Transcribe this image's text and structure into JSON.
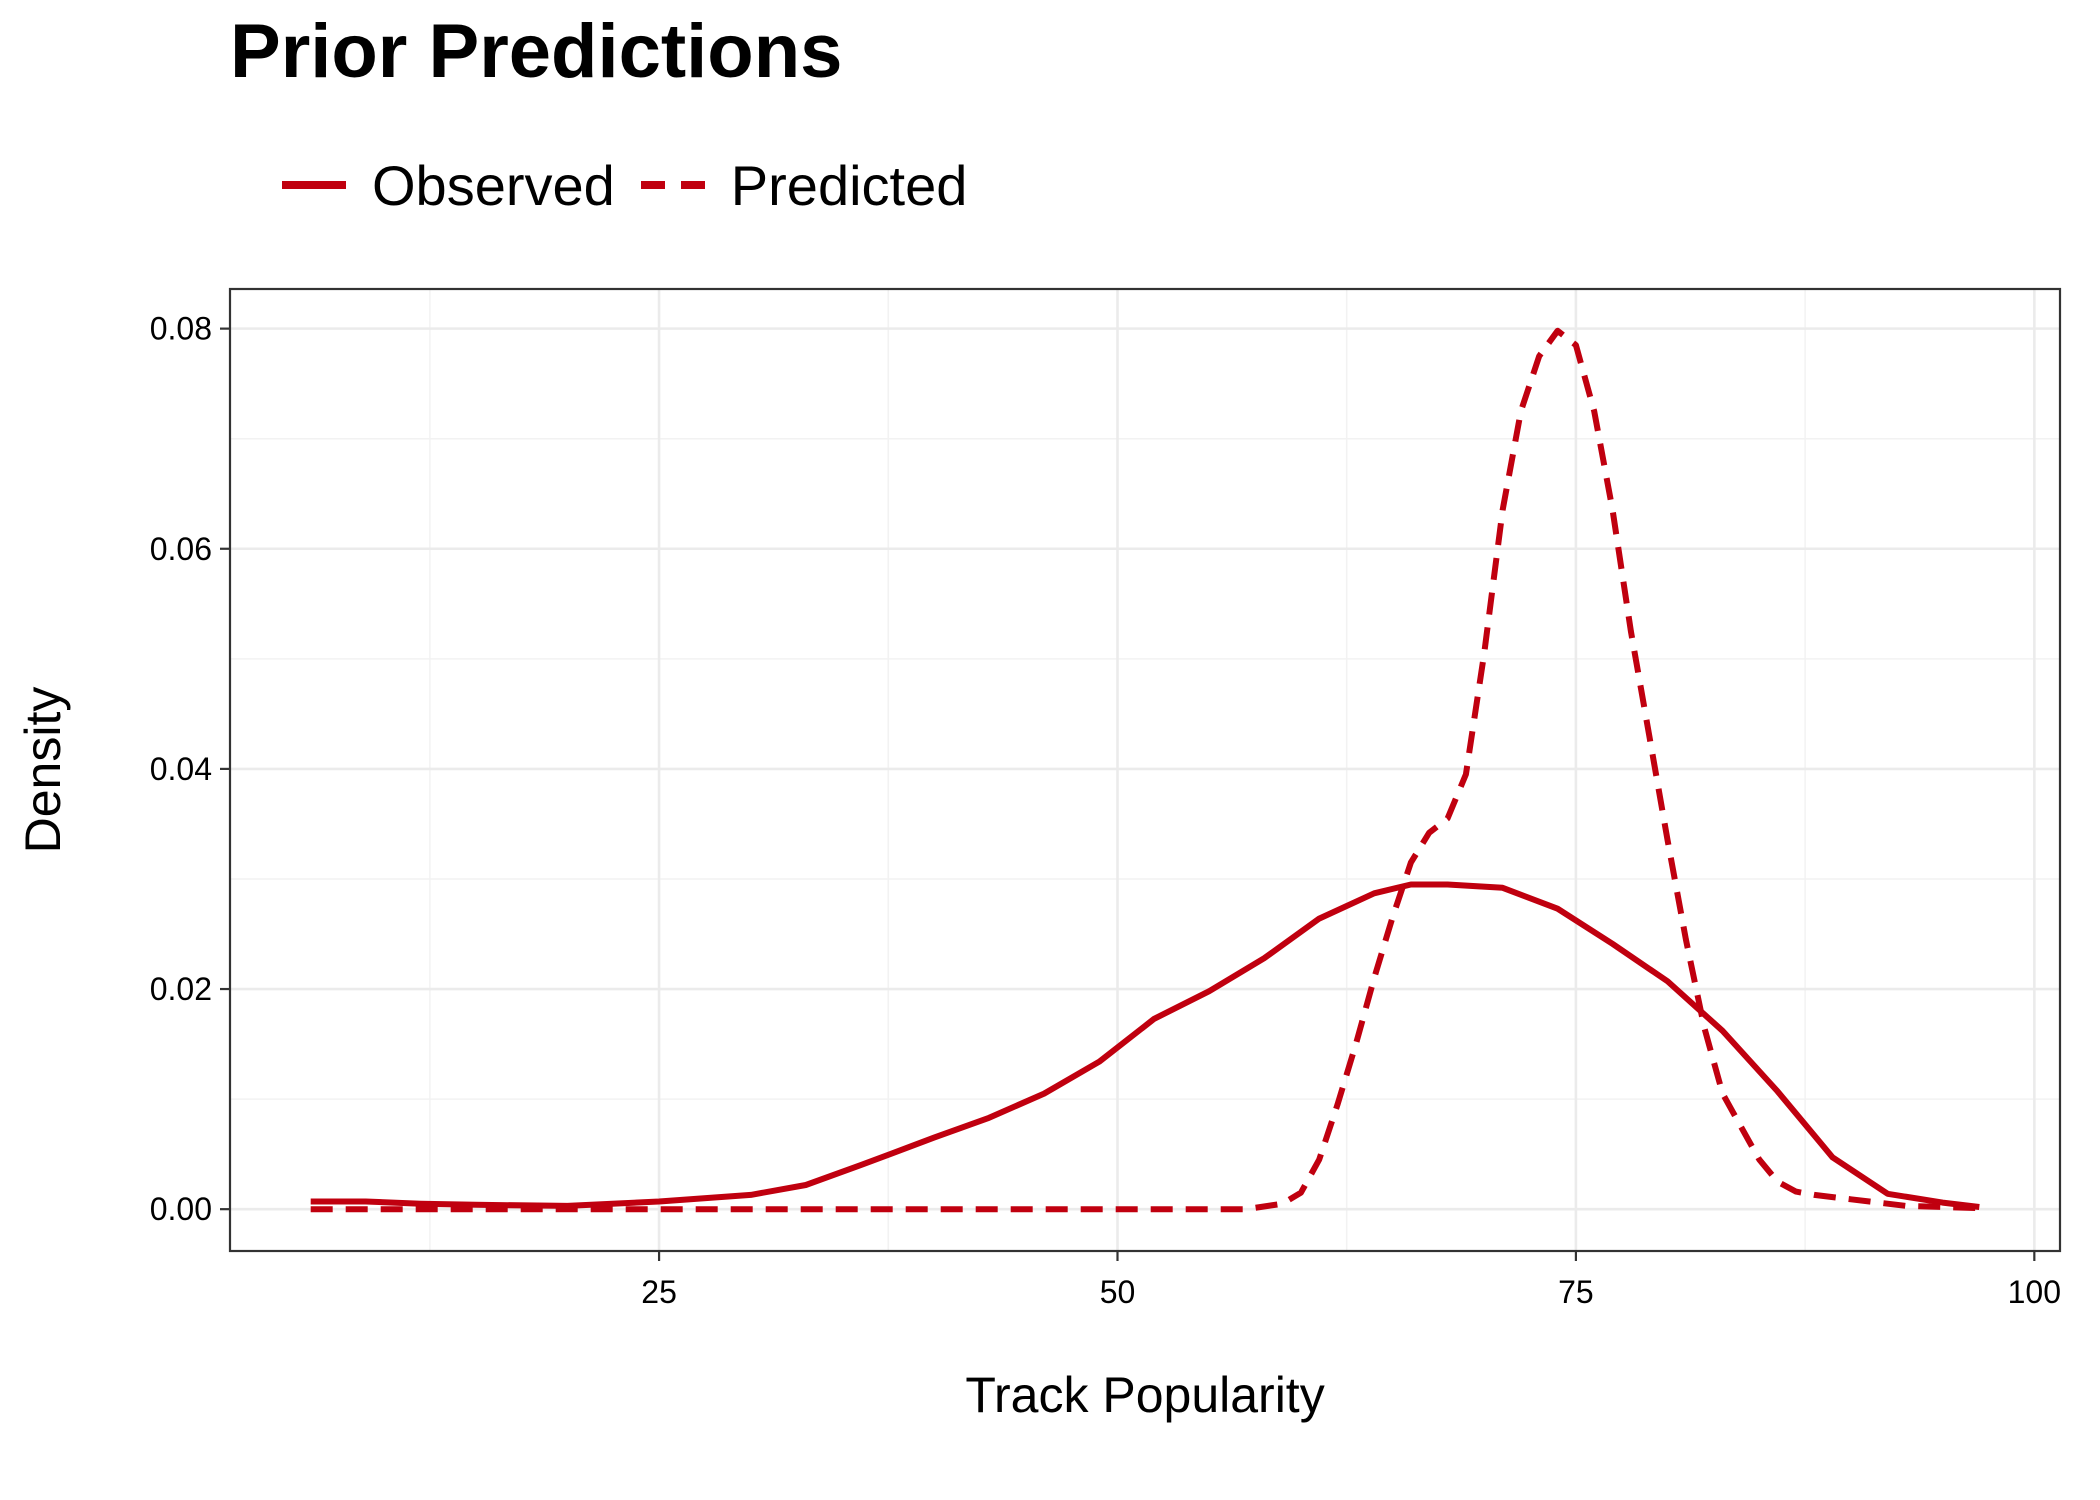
{
  "chart_data": {
    "type": "line",
    "title": "Prior Predictions",
    "xlabel": "Track Popularity",
    "ylabel": "Density",
    "xlim": [
      1.6,
      101.4
    ],
    "ylim": [
      -0.0038,
      0.0836
    ],
    "x_ticks": [
      25,
      50,
      75,
      100
    ],
    "x_tick_labels": [
      "25",
      "50",
      "75",
      "100"
    ],
    "y_ticks": [
      0,
      0.02,
      0.04,
      0.06,
      0.08
    ],
    "y_tick_labels": [
      "0.00",
      "0.02",
      "0.04",
      "0.06",
      "0.08"
    ],
    "grid": true,
    "legend_position": "top-left",
    "color": "#c0000f",
    "series": [
      {
        "name": "Observed",
        "style": "solid",
        "x": [
          6,
          9,
          12,
          15,
          20,
          25,
          30,
          33,
          36,
          40,
          43,
          46,
          49,
          52,
          55,
          58,
          61,
          64,
          66,
          68,
          71,
          74,
          77,
          80,
          83,
          86,
          89,
          92,
          95,
          97
        ],
        "y": [
          0.0007,
          0.0007,
          0.0005,
          0.0004,
          0.0003,
          0.0007,
          0.0013,
          0.0022,
          0.004,
          0.0065,
          0.0083,
          0.0105,
          0.0134,
          0.0173,
          0.0198,
          0.0228,
          0.0264,
          0.0287,
          0.0295,
          0.0295,
          0.0292,
          0.0273,
          0.0241,
          0.0207,
          0.0162,
          0.0107,
          0.0047,
          0.0014,
          0.0006,
          0.0002
        ]
      },
      {
        "name": "Predicted",
        "style": "dashed",
        "x": [
          6,
          20,
          40,
          57,
          59,
          60,
          61,
          62,
          63,
          64,
          65,
          66,
          67,
          68,
          69,
          70,
          71,
          72,
          73,
          74,
          75,
          76,
          77,
          78,
          79,
          80,
          81,
          82,
          83,
          84,
          85,
          86,
          87,
          88,
          90,
          93,
          97
        ],
        "y": [
          0.0,
          0.0,
          0.0,
          0.0,
          0.0005,
          0.0015,
          0.0045,
          0.0095,
          0.015,
          0.021,
          0.0265,
          0.0315,
          0.0342,
          0.0355,
          0.0395,
          0.0505,
          0.0635,
          0.0725,
          0.0775,
          0.0798,
          0.0785,
          0.0725,
          0.0635,
          0.0525,
          0.043,
          0.0335,
          0.0245,
          0.0165,
          0.0105,
          0.0075,
          0.0045,
          0.0025,
          0.0016,
          0.0013,
          0.0009,
          0.0003,
          0.0001
        ]
      }
    ]
  }
}
